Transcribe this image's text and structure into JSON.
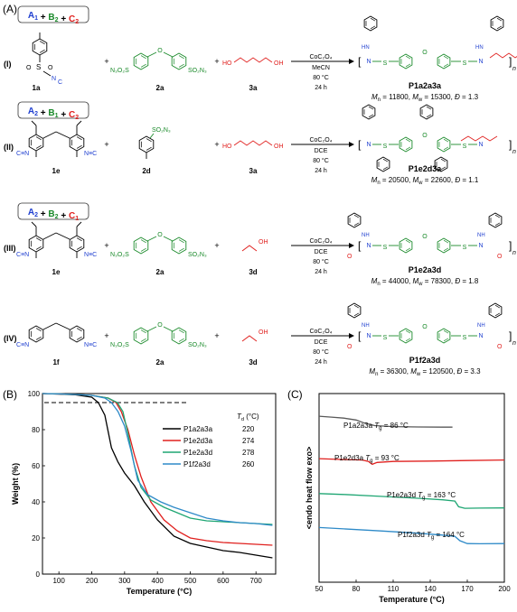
{
  "panel_labels": {
    "A": "(A)",
    "B": "(B)",
    "C": "(C)"
  },
  "scheme": {
    "rows": [
      {
        "roman": "(I)",
        "combo": [
          {
            "t": "A",
            "s": "1",
            "c": "#1f3fd0"
          },
          {
            "t": " + ",
            "c": "#000"
          },
          {
            "t": "B",
            "s": "2",
            "c": "#1a8a2a"
          },
          {
            "t": " + ",
            "c": "#000"
          },
          {
            "t": "C",
            "s": "2",
            "c": "#e0201e"
          }
        ],
        "m1": "1a",
        "m2": "2a",
        "m3": "3a",
        "conditions": [
          "CoC₂O₄",
          "MeCN",
          "80 °C",
          "24 h"
        ],
        "product": "P1a2a3a",
        "mw": {
          "mn": "11800",
          "mwv": "15300",
          "d": "1.3"
        }
      },
      {
        "roman": "(II)",
        "combo": [
          {
            "t": "A",
            "s": "2",
            "c": "#1f3fd0"
          },
          {
            "t": " + ",
            "c": "#000"
          },
          {
            "t": "B",
            "s": "1",
            "c": "#1a8a2a"
          },
          {
            "t": " + ",
            "c": "#000"
          },
          {
            "t": "C",
            "s": "2",
            "c": "#e0201e"
          }
        ],
        "m1": "1e",
        "m2": "2d",
        "m3": "3a",
        "conditions": [
          "CoC₂O₄",
          "DCE",
          "80 °C",
          "24 h"
        ],
        "product": "P1e2d3a",
        "mw": {
          "mn": "20500",
          "mwv": "22600",
          "d": "1.1"
        }
      },
      {
        "roman": "(III)",
        "combo": [
          {
            "t": "A",
            "s": "2",
            "c": "#1f3fd0"
          },
          {
            "t": " + ",
            "c": "#000"
          },
          {
            "t": "B",
            "s": "2",
            "c": "#1a8a2a"
          },
          {
            "t": " + ",
            "c": "#000"
          },
          {
            "t": "C",
            "s": "1",
            "c": "#e0201e"
          }
        ],
        "m1": "1e",
        "m2": "2a",
        "m3": "3d",
        "conditions": [
          "CoC₂O₄",
          "DCE",
          "80 °C",
          "24 h"
        ],
        "product": "P1e2a3d",
        "mw": {
          "mn": "44000",
          "mwv": "78300",
          "d": "1.8"
        }
      },
      {
        "roman": "(IV)",
        "combo": [],
        "m1": "1f",
        "m2": "2a",
        "m3": "3d",
        "conditions": [
          "CoC₂O₄",
          "DCE",
          "80 °C",
          "24 h"
        ],
        "product": "P1f2a3d",
        "mw": {
          "mn": "36300",
          "mwv": "120500",
          "d": "3.3"
        }
      }
    ],
    "groups": {
      "so2n3": "SO₂N₃",
      "n3o2s": "N₃O₂S",
      "ho": "HO",
      "oh": "OH",
      "so2": "S",
      "o": "O",
      "nc": "N",
      "n": "n",
      "nh": "NH",
      "hn": "HN"
    }
  },
  "chart_data": [
    {
      "type": "line",
      "panel": "(B)",
      "xlabel": "Temperature (°C)",
      "ylabel": "Weight (%)",
      "xlim": [
        50,
        760
      ],
      "ylim": [
        0,
        100
      ],
      "xticks": [
        100,
        200,
        300,
        400,
        500,
        600,
        700
      ],
      "yticks": [
        0,
        20,
        40,
        60,
        80,
        100
      ],
      "dashed_line_y": 95,
      "legend_header": "T",
      "legend_header_sub": "d",
      "legend_header_unit": " (°C)",
      "legend_position": "upper-right",
      "series": [
        {
          "name": "P1a2a3a",
          "td": "220",
          "color": "#000000",
          "x": [
            50,
            100,
            150,
            200,
            220,
            240,
            260,
            280,
            300,
            330,
            360,
            400,
            450,
            500,
            550,
            600,
            650,
            700,
            750
          ],
          "y": [
            100,
            99.7,
            99.3,
            98,
            95,
            88,
            70,
            62,
            56,
            49,
            40,
            30,
            21,
            17,
            15,
            13,
            12,
            10.5,
            9
          ]
        },
        {
          "name": "P1e2d3a",
          "td": "274",
          "color": "#e0201e",
          "x": [
            50,
            100,
            150,
            200,
            250,
            274,
            290,
            310,
            330,
            350,
            380,
            420,
            460,
            500,
            550,
            600,
            650,
            700,
            750
          ],
          "y": [
            100,
            99.8,
            99.5,
            99,
            97.5,
            95,
            90,
            80,
            66,
            54,
            40,
            30,
            24,
            20,
            18.5,
            17.5,
            17,
            16.5,
            16
          ]
        },
        {
          "name": "P1e2a3d",
          "td": "278",
          "color": "#1fa673",
          "x": [
            50,
            100,
            150,
            200,
            250,
            278,
            295,
            310,
            330,
            350,
            380,
            420,
            460,
            500,
            550,
            600,
            650,
            700,
            750
          ],
          "y": [
            100,
            99.8,
            99.5,
            99,
            97.5,
            95,
            90,
            78,
            60,
            48,
            41,
            37,
            34,
            31,
            29.5,
            29,
            28.5,
            28,
            27.5
          ]
        },
        {
          "name": "P1f2a3d",
          "td": "260",
          "color": "#2e8ac8",
          "x": [
            50,
            100,
            150,
            200,
            240,
            260,
            280,
            300,
            320,
            340,
            370,
            410,
            450,
            500,
            550,
            600,
            650,
            700,
            750
          ],
          "y": [
            100,
            99.8,
            99.5,
            99,
            97.5,
            95,
            90,
            82,
            68,
            52,
            44,
            40,
            37,
            34,
            31,
            29.5,
            28.5,
            28,
            27
          ]
        }
      ]
    },
    {
      "type": "line",
      "panel": "(C)",
      "xlabel": "Temperature (°C)",
      "ylabel": "<endo heat flow exo>",
      "xlim": [
        50,
        200
      ],
      "xticks": [
        50,
        80,
        110,
        140,
        170,
        200
      ],
      "tg_prefix": "T",
      "tg_sub": "g",
      "series": [
        {
          "name": "P1a2a3a",
          "tg": " = 86 °C",
          "color": "#595959",
          "x": [
            50,
            60,
            70,
            80,
            86,
            95,
            110,
            130,
            150,
            158
          ],
          "y": [
            0.88,
            0.875,
            0.87,
            0.86,
            0.845,
            0.83,
            0.825,
            0.823,
            0.822,
            0.822
          ]
        },
        {
          "name": "P1e2d3a",
          "tg": " = 93 °C",
          "color": "#e0201e",
          "x": [
            50,
            70,
            85,
            90,
            93,
            97,
            110,
            140,
            170,
            200
          ],
          "y": [
            0.655,
            0.65,
            0.648,
            0.64,
            0.625,
            0.635,
            0.64,
            0.642,
            0.645,
            0.648
          ]
        },
        {
          "name": "P1e2a3d",
          "tg": " = 163 °C",
          "color": "#1fa673",
          "x": [
            50,
            70,
            100,
            130,
            150,
            160,
            163,
            168,
            180,
            200
          ],
          "y": [
            0.47,
            0.465,
            0.455,
            0.445,
            0.437,
            0.43,
            0.4,
            0.392,
            0.393,
            0.394
          ]
        },
        {
          "name": "P1f2a3d",
          "tg": " = 164 °C",
          "color": "#2e8ac8",
          "x": [
            50,
            70,
            100,
            130,
            150,
            160,
            164,
            170,
            180,
            200
          ],
          "y": [
            0.29,
            0.283,
            0.272,
            0.26,
            0.25,
            0.243,
            0.22,
            0.205,
            0.204,
            0.205
          ]
        }
      ]
    }
  ]
}
